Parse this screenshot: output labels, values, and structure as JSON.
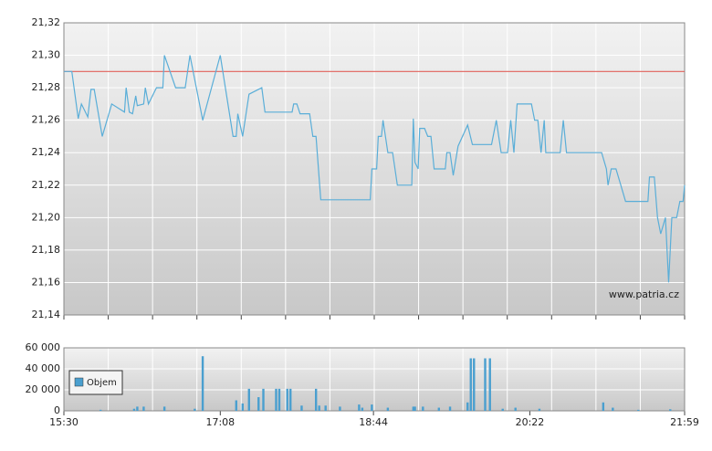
{
  "chart_data": [
    {
      "type": "line",
      "xlim": [
        "15:30",
        "21:59"
      ],
      "ylim": [
        21.14,
        21.32
      ],
      "yticks": [
        {
          "value": 21.14,
          "label": "21,14"
        },
        {
          "value": 21.16,
          "label": "21,16"
        },
        {
          "value": 21.18,
          "label": "21,18"
        },
        {
          "value": 21.2,
          "label": "21,20"
        },
        {
          "value": 21.22,
          "label": "21,22"
        },
        {
          "value": 21.24,
          "label": "21,24"
        },
        {
          "value": 21.26,
          "label": "21,26"
        },
        {
          "value": 21.28,
          "label": "21,28"
        },
        {
          "value": 21.3,
          "label": "21,30"
        },
        {
          "value": 21.32,
          "label": "21,32"
        }
      ],
      "grid": true,
      "reference": 21.29,
      "reference_color": "#e0605a",
      "watermark": "www.patria.cz",
      "x": [
        "15:30",
        "15:35",
        "15:39",
        "15:41",
        "15:45",
        "15:47",
        "15:49",
        "15:54",
        "16:00",
        "16:08",
        "16:09",
        "16:11",
        "16:13",
        "16:15",
        "16:16",
        "16:20",
        "16:21",
        "16:23",
        "16:28",
        "16:32",
        "16:33",
        "16:40",
        "16:46",
        "16:49",
        "16:57",
        "17:08",
        "17:16",
        "17:18",
        "17:19",
        "17:22",
        "17:26",
        "17:34",
        "17:36",
        "17:53",
        "17:54",
        "17:56",
        "17:58",
        "18:04",
        "18:06",
        "18:08",
        "18:11",
        "18:42",
        "18:43",
        "18:46",
        "18:47",
        "18:49",
        "18:50",
        "18:53",
        "18:56",
        "18:59",
        "19:08",
        "19:09",
        "19:10",
        "19:12",
        "19:13",
        "19:16",
        "19:18",
        "19:20",
        "19:22",
        "19:29",
        "19:30",
        "19:32",
        "19:34",
        "19:37",
        "19:43",
        "19:46",
        "19:58",
        "20:01",
        "20:04",
        "20:08",
        "20:10",
        "20:12",
        "20:14",
        "20:23",
        "20:25",
        "20:27",
        "20:29",
        "20:31",
        "20:32",
        "20:41",
        "20:43",
        "20:45",
        "21:07",
        "21:10",
        "21:11",
        "21:13",
        "21:16",
        "21:19",
        "21:22",
        "21:36",
        "21:37",
        "21:40",
        "21:42",
        "21:44",
        "21:47",
        "21:49",
        "21:51",
        "21:54",
        "21:56",
        "21:58",
        "21:59"
      ],
      "series": [
        {
          "color": "#5aaed8",
          "values": [
            21.29,
            21.29,
            21.261,
            21.27,
            21.262,
            21.279,
            21.279,
            21.25,
            21.27,
            21.265,
            21.28,
            21.265,
            21.264,
            21.275,
            21.269,
            21.27,
            21.28,
            21.27,
            21.28,
            21.28,
            21.3,
            21.28,
            21.28,
            21.3,
            21.26,
            21.3,
            21.25,
            21.25,
            21.264,
            21.25,
            21.276,
            21.28,
            21.265,
            21.265,
            21.27,
            21.27,
            21.264,
            21.264,
            21.25,
            21.25,
            21.211,
            21.211,
            21.23,
            21.23,
            21.25,
            21.25,
            21.26,
            21.24,
            21.24,
            21.22,
            21.22,
            21.261,
            21.234,
            21.23,
            21.255,
            21.255,
            21.25,
            21.25,
            21.23,
            21.23,
            21.24,
            21.24,
            21.226,
            21.244,
            21.257,
            21.245,
            21.245,
            21.26,
            21.24,
            21.24,
            21.26,
            21.24,
            21.27,
            21.27,
            21.26,
            21.26,
            21.24,
            21.26,
            21.24,
            21.24,
            21.26,
            21.24,
            21.24,
            21.23,
            21.22,
            21.23,
            21.23,
            21.22,
            21.21,
            21.21,
            21.225,
            21.225,
            21.2,
            21.19,
            21.2,
            21.16,
            21.2,
            21.2,
            21.21,
            21.21,
            21.22
          ]
        }
      ]
    },
    {
      "type": "bar",
      "xlim": [
        "15:30",
        "21:59"
      ],
      "xticks": [
        "15:30",
        "17:08",
        "18:44",
        "20:22",
        "21:59"
      ],
      "ylim": [
        0,
        60000
      ],
      "yticks": [
        0,
        {
          "value": 20000,
          "label": "20 000"
        },
        {
          "value": 40000,
          "label": "40 000"
        },
        {
          "value": 60000,
          "label": "60 000"
        }
      ],
      "grid": true,
      "x": [
        "15:53",
        "16:14",
        "16:16",
        "16:20",
        "16:33",
        "16:52",
        "16:57",
        "17:18",
        "17:22",
        "17:26",
        "17:32",
        "17:35",
        "17:43",
        "17:45",
        "17:50",
        "17:52",
        "17:59",
        "18:08",
        "18:10",
        "18:14",
        "18:23",
        "18:35",
        "18:37",
        "18:43",
        "18:53",
        "19:09",
        "19:10",
        "19:15",
        "19:25",
        "19:32",
        "19:43",
        "19:45",
        "19:47",
        "19:54",
        "19:57",
        "20:05",
        "20:13",
        "20:28",
        "21:08",
        "21:14",
        "21:30",
        "21:50"
      ],
      "series": [
        {
          "name": "Objem",
          "color": "#4a9fcf",
          "values": [
            1000,
            2000,
            4000,
            4000,
            4000,
            2000,
            52000,
            10000,
            7000,
            21000,
            13000,
            21000,
            21000,
            21000,
            21000,
            21000,
            5000,
            21000,
            5000,
            5000,
            4000,
            6000,
            3000,
            6000,
            3000,
            4000,
            4000,
            4000,
            3000,
            4000,
            8000,
            50000,
            50000,
            50000,
            50000,
            2000,
            3000,
            2000,
            8000,
            3000,
            1000,
            1500
          ]
        }
      ]
    }
  ]
}
